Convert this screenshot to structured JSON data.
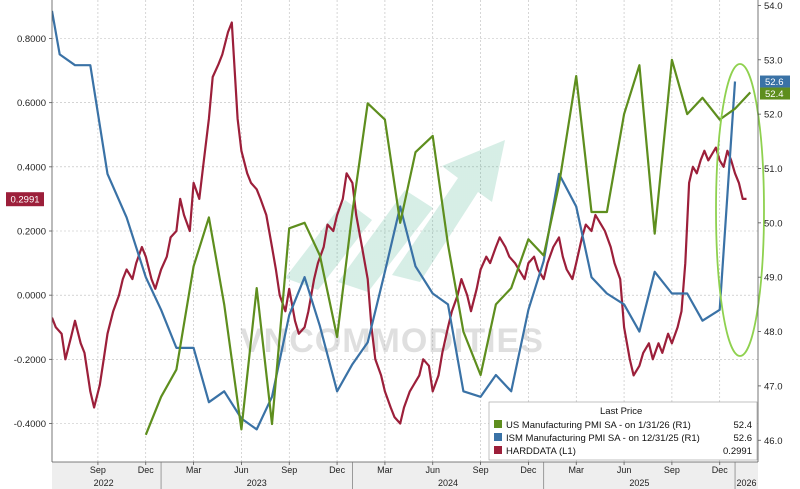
{
  "watermark": "VNCOMMODITIES",
  "chart_data": {
    "type": "line",
    "title": "",
    "grid": true,
    "legend_position": "bottom-right",
    "legend_title": "Last Price",
    "left_axis": {
      "range": [
        -0.52,
        0.92
      ],
      "ticks": [
        0.8,
        0.6,
        0.4,
        0.2,
        0.0,
        -0.2,
        -0.4
      ],
      "tick_labels": [
        "0.8000",
        "0.6000",
        "0.4000",
        "0.2000",
        "0.0000",
        "-0.2000",
        "-0.4000"
      ]
    },
    "right_axis": {
      "range": [
        45.6,
        54.1
      ],
      "ticks": [
        54.0,
        53.0,
        52.0,
        51.0,
        50.0,
        49.0,
        48.0,
        47.0,
        46.0
      ],
      "tick_labels": [
        "54.0",
        "53.0",
        "52.0",
        "51.0",
        "50.0",
        "49.0",
        "48.0",
        "47.0",
        "46.0"
      ]
    },
    "x_axis": {
      "range": [
        2022.43,
        2026.12
      ],
      "month_ticks": [
        {
          "label": "Sep",
          "x": 2022.67
        },
        {
          "label": "Dec",
          "x": 2022.92
        },
        {
          "label": "Mar",
          "x": 2023.17
        },
        {
          "label": "Jun",
          "x": 2023.42
        },
        {
          "label": "Sep",
          "x": 2023.67
        },
        {
          "label": "Dec",
          "x": 2023.92
        },
        {
          "label": "Mar",
          "x": 2024.17
        },
        {
          "label": "Jun",
          "x": 2024.42
        },
        {
          "label": "Sep",
          "x": 2024.67
        },
        {
          "label": "Dec",
          "x": 2024.92
        },
        {
          "label": "Mar",
          "x": 2025.17
        },
        {
          "label": "Jun",
          "x": 2025.42
        },
        {
          "label": "Sep",
          "x": 2025.67
        },
        {
          "label": "Dec",
          "x": 2025.92
        }
      ],
      "year_labels": [
        {
          "label": "2022",
          "x": 2022.7
        },
        {
          "label": "2023",
          "x": 2023.5
        },
        {
          "label": "2024",
          "x": 2024.5
        },
        {
          "label": "2025",
          "x": 2025.5
        },
        {
          "label": "2026",
          "x": 2026.06
        }
      ],
      "year_boundaries": [
        2023.0,
        2024.0,
        2025.0,
        2026.0
      ]
    },
    "series": [
      {
        "name": "US Manufacturing PMI SA -  on 1/31/26  (R1)",
        "last_value": "52.4",
        "axis": "right",
        "color": "#5e8e1e",
        "points": [
          [
            2022.92,
            46.1
          ],
          [
            2023.0,
            46.8
          ],
          [
            2023.08,
            47.3
          ],
          [
            2023.17,
            49.2
          ],
          [
            2023.25,
            50.1
          ],
          [
            2023.33,
            48.5
          ],
          [
            2023.42,
            46.2
          ],
          [
            2023.5,
            48.8
          ],
          [
            2023.58,
            46.3
          ],
          [
            2023.67,
            49.9
          ],
          [
            2023.75,
            50.0
          ],
          [
            2023.83,
            49.4
          ],
          [
            2023.92,
            47.9
          ],
          [
            2024.0,
            50.2
          ],
          [
            2024.08,
            52.2
          ],
          [
            2024.17,
            51.9
          ],
          [
            2024.25,
            50.0
          ],
          [
            2024.33,
            51.3
          ],
          [
            2024.42,
            51.6
          ],
          [
            2024.5,
            49.6
          ],
          [
            2024.58,
            48.0
          ],
          [
            2024.67,
            47.2
          ],
          [
            2024.75,
            48.5
          ],
          [
            2024.83,
            48.8
          ],
          [
            2024.92,
            49.7
          ],
          [
            2025.0,
            49.4
          ],
          [
            2025.08,
            50.7
          ],
          [
            2025.17,
            52.7
          ],
          [
            2025.25,
            50.2
          ],
          [
            2025.33,
            50.2
          ],
          [
            2025.42,
            52.0
          ],
          [
            2025.5,
            52.9
          ],
          [
            2025.58,
            49.8
          ],
          [
            2025.67,
            53.0
          ],
          [
            2025.75,
            52.0
          ],
          [
            2025.83,
            52.3
          ],
          [
            2025.92,
            51.9
          ],
          [
            2026.0,
            52.1
          ],
          [
            2026.08,
            52.4
          ]
        ]
      },
      {
        "name": "ISM Manufacturing PMI SA -  on 12/31/25  (R1)",
        "last_value": "52.6",
        "axis": "right",
        "color": "#3a72a6",
        "points": [
          [
            2022.43,
            53.9
          ],
          [
            2022.47,
            53.1
          ],
          [
            2022.55,
            52.9
          ],
          [
            2022.63,
            52.9
          ],
          [
            2022.72,
            50.9
          ],
          [
            2022.82,
            50.1
          ],
          [
            2022.92,
            49.0
          ],
          [
            2023.0,
            48.4
          ],
          [
            2023.08,
            47.7
          ],
          [
            2023.17,
            47.7
          ],
          [
            2023.25,
            46.7
          ],
          [
            2023.33,
            46.9
          ],
          [
            2023.42,
            46.4
          ],
          [
            2023.5,
            46.2
          ],
          [
            2023.58,
            46.8
          ],
          [
            2023.67,
            48.3
          ],
          [
            2023.75,
            49.0
          ],
          [
            2023.83,
            48.1
          ],
          [
            2023.92,
            46.9
          ],
          [
            2024.0,
            47.4
          ],
          [
            2024.08,
            47.8
          ],
          [
            2024.17,
            49.1
          ],
          [
            2024.25,
            50.3
          ],
          [
            2024.33,
            49.2
          ],
          [
            2024.42,
            48.7
          ],
          [
            2024.5,
            48.5
          ],
          [
            2024.58,
            46.9
          ],
          [
            2024.67,
            46.8
          ],
          [
            2024.75,
            47.2
          ],
          [
            2024.83,
            46.9
          ],
          [
            2024.92,
            48.4
          ],
          [
            2025.0,
            49.3
          ],
          [
            2025.08,
            50.9
          ],
          [
            2025.17,
            50.3
          ],
          [
            2025.25,
            49.0
          ],
          [
            2025.33,
            48.7
          ],
          [
            2025.42,
            48.5
          ],
          [
            2025.5,
            48.0
          ],
          [
            2025.58,
            49.1
          ],
          [
            2025.67,
            48.7
          ],
          [
            2025.75,
            48.7
          ],
          [
            2025.83,
            48.2
          ],
          [
            2025.92,
            48.4
          ],
          [
            2026.0,
            52.6
          ]
        ]
      },
      {
        "name": "HARDDATA  (L1)",
        "last_value": "0.2991",
        "axis": "left",
        "color": "#9c1f3a",
        "points": [
          [
            2022.43,
            -0.07
          ],
          [
            2022.45,
            -0.1
          ],
          [
            2022.48,
            -0.12
          ],
          [
            2022.5,
            -0.2
          ],
          [
            2022.53,
            -0.13
          ],
          [
            2022.55,
            -0.08
          ],
          [
            2022.58,
            -0.15
          ],
          [
            2022.6,
            -0.18
          ],
          [
            2022.63,
            -0.3
          ],
          [
            2022.65,
            -0.35
          ],
          [
            2022.68,
            -0.28
          ],
          [
            2022.7,
            -0.2
          ],
          [
            2022.72,
            -0.12
          ],
          [
            2022.75,
            -0.05
          ],
          [
            2022.78,
            0.0
          ],
          [
            2022.8,
            0.05
          ],
          [
            2022.82,
            0.08
          ],
          [
            2022.85,
            0.05
          ],
          [
            2022.87,
            0.1
          ],
          [
            2022.9,
            0.15
          ],
          [
            2022.92,
            0.12
          ],
          [
            2022.95,
            0.05
          ],
          [
            2022.97,
            0.02
          ],
          [
            2023.0,
            0.08
          ],
          [
            2023.03,
            0.12
          ],
          [
            2023.05,
            0.18
          ],
          [
            2023.08,
            0.2
          ],
          [
            2023.1,
            0.3
          ],
          [
            2023.12,
            0.25
          ],
          [
            2023.15,
            0.2
          ],
          [
            2023.17,
            0.35
          ],
          [
            2023.2,
            0.3
          ],
          [
            2023.22,
            0.4
          ],
          [
            2023.25,
            0.55
          ],
          [
            2023.27,
            0.68
          ],
          [
            2023.3,
            0.72
          ],
          [
            2023.32,
            0.75
          ],
          [
            2023.35,
            0.82
          ],
          [
            2023.37,
            0.85
          ],
          [
            2023.4,
            0.55
          ],
          [
            2023.42,
            0.45
          ],
          [
            2023.45,
            0.38
          ],
          [
            2023.47,
            0.35
          ],
          [
            2023.5,
            0.33
          ],
          [
            2023.52,
            0.3
          ],
          [
            2023.55,
            0.25
          ],
          [
            2023.58,
            0.15
          ],
          [
            2023.6,
            0.08
          ],
          [
            2023.62,
            0.0
          ],
          [
            2023.65,
            -0.05
          ],
          [
            2023.67,
            0.02
          ],
          [
            2023.7,
            -0.08
          ],
          [
            2023.72,
            -0.12
          ],
          [
            2023.75,
            -0.1
          ],
          [
            2023.77,
            -0.05
          ],
          [
            2023.8,
            0.05
          ],
          [
            2023.82,
            0.1
          ],
          [
            2023.85,
            0.15
          ],
          [
            2023.87,
            0.22
          ],
          [
            2023.9,
            0.2
          ],
          [
            2023.92,
            0.25
          ],
          [
            2023.95,
            0.3
          ],
          [
            2023.97,
            0.38
          ],
          [
            2024.0,
            0.35
          ],
          [
            2024.02,
            0.25
          ],
          [
            2024.05,
            0.15
          ],
          [
            2024.08,
            0.05
          ],
          [
            2024.1,
            -0.1
          ],
          [
            2024.12,
            -0.2
          ],
          [
            2024.15,
            -0.25
          ],
          [
            2024.17,
            -0.3
          ],
          [
            2024.2,
            -0.35
          ],
          [
            2024.22,
            -0.38
          ],
          [
            2024.25,
            -0.4
          ],
          [
            2024.27,
            -0.35
          ],
          [
            2024.3,
            -0.3
          ],
          [
            2024.32,
            -0.28
          ],
          [
            2024.35,
            -0.25
          ],
          [
            2024.37,
            -0.2
          ],
          [
            2024.4,
            -0.22
          ],
          [
            2024.42,
            -0.3
          ],
          [
            2024.45,
            -0.25
          ],
          [
            2024.47,
            -0.18
          ],
          [
            2024.5,
            -0.1
          ],
          [
            2024.52,
            -0.05
          ],
          [
            2024.55,
            0.0
          ],
          [
            2024.57,
            0.05
          ],
          [
            2024.6,
            0.0
          ],
          [
            2024.62,
            -0.05
          ],
          [
            2024.65,
            0.02
          ],
          [
            2024.67,
            0.08
          ],
          [
            2024.7,
            0.12
          ],
          [
            2024.72,
            0.1
          ],
          [
            2024.75,
            0.15
          ],
          [
            2024.77,
            0.18
          ],
          [
            2024.8,
            0.15
          ],
          [
            2024.82,
            0.12
          ],
          [
            2024.85,
            0.1
          ],
          [
            2024.87,
            0.08
          ],
          [
            2024.9,
            0.05
          ],
          [
            2024.92,
            0.1
          ],
          [
            2024.95,
            0.12
          ],
          [
            2024.97,
            0.08
          ],
          [
            2025.0,
            0.05
          ],
          [
            2025.02,
            0.1
          ],
          [
            2025.05,
            0.15
          ],
          [
            2025.08,
            0.18
          ],
          [
            2025.1,
            0.12
          ],
          [
            2025.12,
            0.08
          ],
          [
            2025.15,
            0.05
          ],
          [
            2025.17,
            0.1
          ],
          [
            2025.2,
            0.18
          ],
          [
            2025.22,
            0.22
          ],
          [
            2025.25,
            0.2
          ],
          [
            2025.27,
            0.25
          ],
          [
            2025.3,
            0.22
          ],
          [
            2025.32,
            0.2
          ],
          [
            2025.35,
            0.15
          ],
          [
            2025.37,
            0.1
          ],
          [
            2025.4,
            0.05
          ],
          [
            2025.42,
            -0.1
          ],
          [
            2025.45,
            -0.2
          ],
          [
            2025.47,
            -0.25
          ],
          [
            2025.5,
            -0.22
          ],
          [
            2025.52,
            -0.18
          ],
          [
            2025.55,
            -0.15
          ],
          [
            2025.57,
            -0.2
          ],
          [
            2025.6,
            -0.15
          ],
          [
            2025.62,
            -0.18
          ],
          [
            2025.65,
            -0.12
          ],
          [
            2025.67,
            -0.15
          ],
          [
            2025.7,
            -0.1
          ],
          [
            2025.72,
            -0.05
          ],
          [
            2025.74,
            0.1
          ],
          [
            2025.76,
            0.35
          ],
          [
            2025.78,
            0.4
          ],
          [
            2025.8,
            0.38
          ],
          [
            2025.82,
            0.42
          ],
          [
            2025.84,
            0.45
          ],
          [
            2025.86,
            0.42
          ],
          [
            2025.88,
            0.44
          ],
          [
            2025.9,
            0.46
          ],
          [
            2025.92,
            0.42
          ],
          [
            2025.94,
            0.4
          ],
          [
            2025.96,
            0.45
          ],
          [
            2025.98,
            0.42
          ],
          [
            2026.0,
            0.38
          ],
          [
            2026.02,
            0.35
          ],
          [
            2026.04,
            0.3
          ],
          [
            2026.06,
            0.3
          ]
        ]
      }
    ]
  }
}
